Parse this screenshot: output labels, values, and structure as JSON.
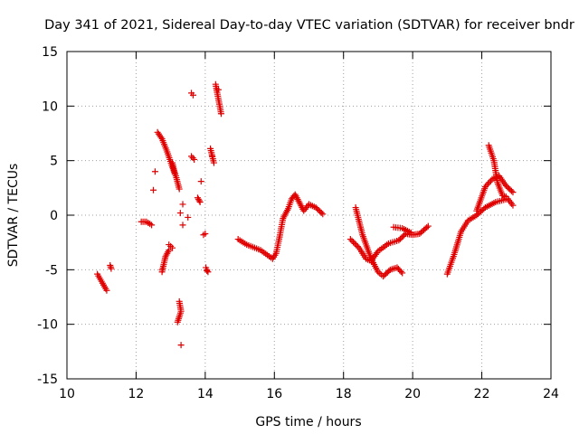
{
  "chart_data": {
    "type": "scatter",
    "title": "Day 341 of 2021, Sidereal Day-to-day VTEC variation (SDTVAR) for receiver bndr",
    "xlabel": "GPS time / hours",
    "ylabel": "SDTVAR / TECUs",
    "xlim": [
      10,
      24
    ],
    "ylim": [
      -15,
      15
    ],
    "xticks": [
      10,
      12,
      14,
      16,
      18,
      20,
      22,
      24
    ],
    "xtick_labels": [
      "10",
      "12",
      "14",
      "16",
      "18",
      "20",
      "22",
      "24"
    ],
    "yticks": [
      -15,
      -10,
      -5,
      0,
      5,
      10,
      15
    ],
    "ytick_labels": [
      "-15",
      "-10",
      "-5",
      "0",
      "5",
      "10",
      "15"
    ],
    "grid": true,
    "grid_style": "dotted",
    "marker": "+",
    "color": "#e00000",
    "series": [
      {
        "name": "SDTVAR",
        "segments": [
          [
            [
              10.88,
              -5.4
            ],
            [
              11.15,
              -6.9
            ]
          ],
          [
            [
              11.25,
              -4.6
            ],
            [
              11.28,
              -4.9
            ]
          ],
          [
            [
              12.15,
              -0.6
            ],
            [
              12.3,
              -0.6
            ],
            [
              12.45,
              -0.9
            ]
          ],
          [
            [
              12.62,
              7.6
            ],
            [
              12.75,
              7.0
            ],
            [
              12.9,
              5.8
            ],
            [
              13.05,
              4.4
            ],
            [
              13.15,
              3.6
            ],
            [
              13.25,
              2.4
            ]
          ],
          [
            [
              12.75,
              -5.2
            ],
            [
              12.85,
              -3.8
            ],
            [
              12.95,
              -3.2
            ]
          ],
          [
            [
              12.95,
              -2.7
            ],
            [
              13.05,
              -3.0
            ]
          ],
          [
            [
              13.05,
              4.8
            ],
            [
              13.12,
              3.8
            ]
          ],
          [
            [
              13.25,
              -7.9
            ],
            [
              13.3,
              -8.8
            ],
            [
              13.2,
              -9.8
            ]
          ],
          [
            [
              13.6,
              11.2
            ],
            [
              13.65,
              11.0
            ]
          ],
          [
            [
              13.6,
              5.4
            ],
            [
              13.68,
              5.1
            ]
          ],
          [
            [
              13.78,
              1.6
            ],
            [
              13.85,
              1.2
            ]
          ],
          [
            [
              13.95,
              -1.8
            ],
            [
              14.0,
              -1.7
            ]
          ],
          [
            [
              14.02,
              -4.8
            ],
            [
              14.08,
              -5.2
            ]
          ],
          [
            [
              14.15,
              6.1
            ],
            [
              14.25,
              4.8
            ]
          ],
          [
            [
              14.3,
              12.0
            ],
            [
              14.42,
              10.0
            ],
            [
              14.46,
              9.3
            ]
          ],
          [
            [
              14.95,
              -2.2
            ],
            [
              15.2,
              -2.7
            ],
            [
              15.6,
              -3.2
            ],
            [
              15.95,
              -4.0
            ],
            [
              16.05,
              -3.5
            ],
            [
              16.15,
              -2.0
            ],
            [
              16.25,
              -0.3
            ],
            [
              16.4,
              0.6
            ],
            [
              16.5,
              1.5
            ],
            [
              16.6,
              1.9
            ],
            [
              16.7,
              1.3
            ],
            [
              16.85,
              0.4
            ],
            [
              17.0,
              1.0
            ],
            [
              17.2,
              0.7
            ],
            [
              17.4,
              0.1
            ]
          ],
          [
            [
              18.2,
              -2.2
            ],
            [
              18.45,
              -3.0
            ],
            [
              18.65,
              -4.0
            ],
            [
              18.8,
              -4.2
            ],
            [
              19.0,
              -3.3
            ],
            [
              19.3,
              -2.6
            ],
            [
              19.6,
              -2.3
            ],
            [
              19.8,
              -1.7
            ],
            [
              20.0,
              -1.8
            ],
            [
              20.2,
              -1.7
            ],
            [
              20.45,
              -1.0
            ]
          ],
          [
            [
              18.35,
              0.7
            ],
            [
              18.55,
              -1.8
            ],
            [
              18.8,
              -4.0
            ],
            [
              19.0,
              -5.2
            ],
            [
              19.15,
              -5.6
            ],
            [
              19.35,
              -5.0
            ],
            [
              19.55,
              -4.8
            ],
            [
              19.7,
              -5.3
            ]
          ],
          [
            [
              19.45,
              -1.1
            ],
            [
              19.7,
              -1.2
            ],
            [
              19.95,
              -1.6
            ]
          ],
          [
            [
              21.0,
              -5.4
            ],
            [
              21.2,
              -3.6
            ],
            [
              21.4,
              -1.5
            ],
            [
              21.6,
              -0.5
            ],
            [
              21.85,
              0.0
            ],
            [
              22.1,
              0.7
            ],
            [
              22.4,
              1.2
            ],
            [
              22.75,
              1.5
            ],
            [
              22.9,
              0.9
            ]
          ],
          [
            [
              21.85,
              0.4
            ],
            [
              22.1,
              2.6
            ],
            [
              22.3,
              3.3
            ],
            [
              22.5,
              3.6
            ],
            [
              22.7,
              2.7
            ],
            [
              22.9,
              2.1
            ]
          ],
          [
            [
              22.2,
              6.4
            ],
            [
              22.35,
              5.0
            ],
            [
              22.45,
              3.0
            ],
            [
              22.6,
              1.8
            ],
            [
              22.7,
              1.7
            ]
          ]
        ],
        "isolated_points": [
          [
            12.55,
            4.0
          ],
          [
            12.5,
            2.3
          ],
          [
            12.75,
            -5.0
          ],
          [
            13.28,
            0.2
          ],
          [
            13.35,
            1.0
          ],
          [
            13.35,
            -0.9
          ],
          [
            13.3,
            -11.9
          ],
          [
            13.5,
            -0.2
          ],
          [
            13.88,
            3.1
          ],
          [
            14.05,
            -5.1
          ],
          [
            14.2,
            5.4
          ],
          [
            14.38,
            11.5
          ]
        ]
      }
    ]
  }
}
